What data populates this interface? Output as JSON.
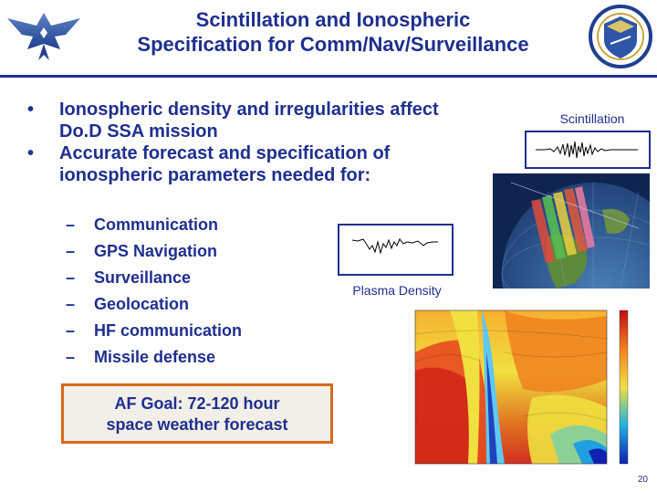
{
  "slide": {
    "title_line1": "Scintillation and Ionospheric",
    "title_line2": "Specification for Comm/Nav/Surveillance",
    "bullets": [
      "Ionospheric density and irregularities affect Do.D SSA mission",
      "Accurate forecast and specification of ionospheric parameters needed for:"
    ],
    "bullet_marker": "•",
    "sub_marker": "–",
    "sub_items": [
      "Communication",
      "GPS Navigation",
      "Surveillance",
      "Geolocation",
      "HF communication",
      "Missile defense"
    ],
    "goal_line1": "AF Goal: 72-120 hour",
    "goal_line2": "space weather forecast",
    "scintillation_label": "Scintillation",
    "plasma_label": "Plasma Density",
    "page_number": "20"
  },
  "colors": {
    "title": "#1f2f8f",
    "rule": "#1f2f8f",
    "goal_border": "#d86a1b",
    "goal_fill": "#f2efe8"
  }
}
